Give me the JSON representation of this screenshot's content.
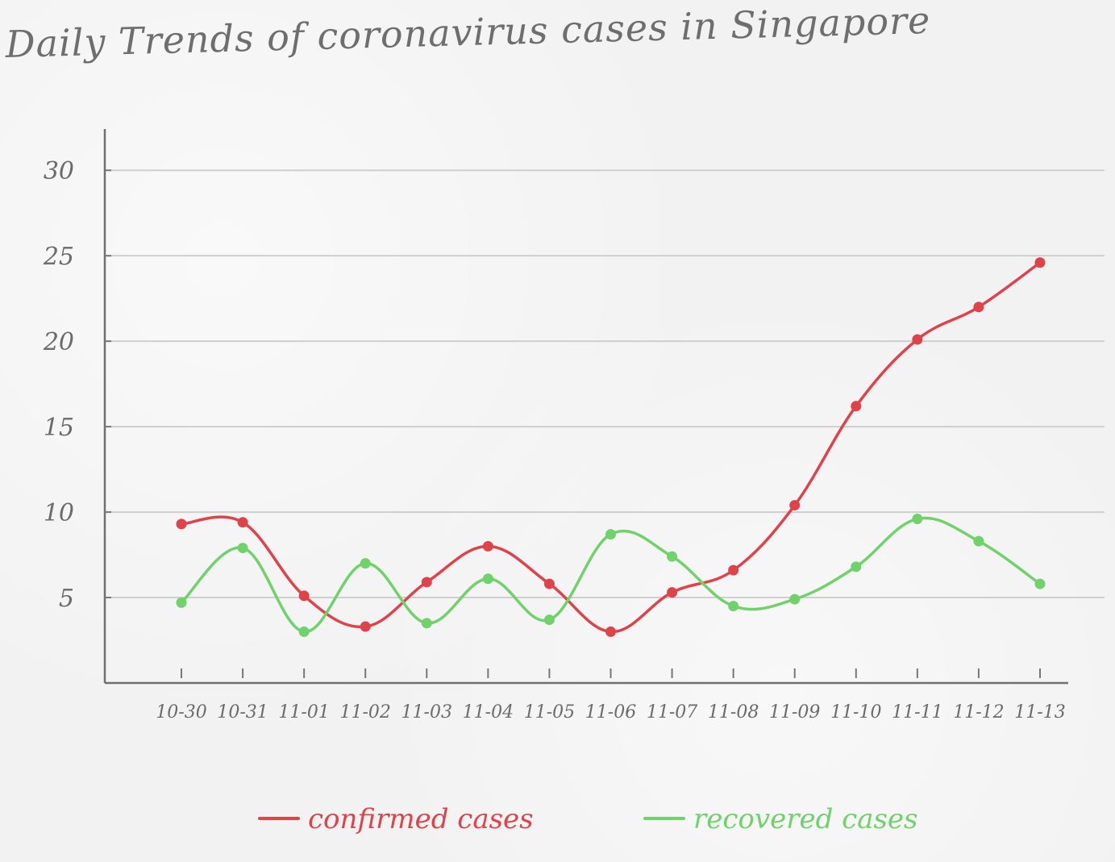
{
  "chart_data": {
    "type": "line",
    "title": "Daily Trends of coronavirus cases in Singapore",
    "xlabel": "",
    "ylabel": "",
    "categories": [
      "10-30",
      "10-31",
      "11-01",
      "11-02",
      "11-03",
      "11-04",
      "11-05",
      "11-06",
      "11-07",
      "11-08",
      "11-09",
      "11-10",
      "11-11",
      "11-12",
      "11-13"
    ],
    "y_ticks": [
      5,
      10,
      15,
      20,
      25,
      30
    ],
    "ylim": [
      0,
      31
    ],
    "grid": true,
    "legend_placement": "bottom",
    "series": [
      {
        "name": "confirmed cases",
        "color": "#e0424a",
        "values": [
          9.3,
          9.4,
          5.1,
          3.3,
          5.9,
          8.0,
          5.8,
          3.0,
          5.3,
          6.6,
          10.4,
          16.2,
          20.1,
          22.0,
          24.6
        ]
      },
      {
        "name": "recovered cases",
        "color": "#6fd26a",
        "values": [
          4.7,
          7.9,
          3.0,
          7.0,
          3.5,
          6.1,
          3.7,
          8.7,
          7.4,
          4.5,
          4.9,
          6.8,
          9.6,
          8.3,
          5.8
        ]
      }
    ]
  }
}
